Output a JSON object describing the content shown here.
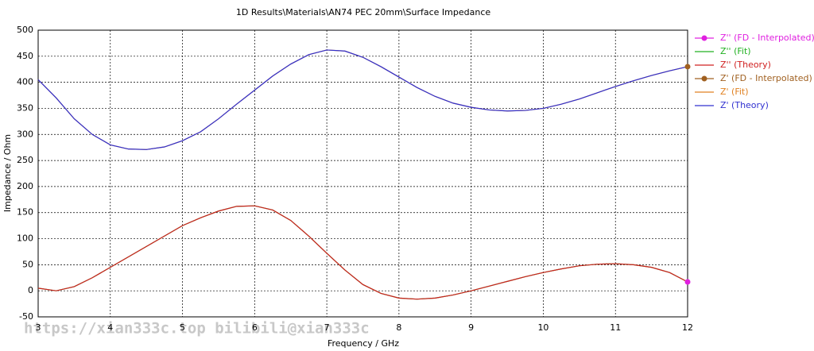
{
  "chart_data": {
    "type": "line",
    "title": "1D Results\\Materials\\AN74 PEC 20mm\\Surface Impedance",
    "x_label": "Frequency / GHz",
    "y_label": "Impedance / Ohm",
    "watermark": "https://xian333c.top bilibili@xian333c",
    "x": [
      3,
      3.25,
      3.5,
      3.75,
      4,
      4.25,
      4.5,
      4.75,
      5,
      5.25,
      5.5,
      5.75,
      6,
      6.25,
      6.5,
      6.75,
      7,
      7.25,
      7.5,
      7.75,
      8,
      8.25,
      8.5,
      8.75,
      9,
      9.25,
      9.5,
      9.75,
      10,
      10.25,
      10.5,
      10.75,
      11,
      11.25,
      11.5,
      11.75,
      12
    ],
    "xlim": [
      3,
      12
    ],
    "xticks": [
      3,
      4,
      5,
      6,
      7,
      8,
      9,
      10,
      11,
      12
    ],
    "ylim": [
      -50,
      500
    ],
    "yticks": [
      -50,
      0,
      50,
      100,
      150,
      200,
      250,
      300,
      350,
      400,
      450,
      500
    ],
    "grid": true,
    "series": [
      {
        "name": "Z'' (FD - Interpolated)",
        "color": "#e020e0",
        "marker": true,
        "values": [
          null,
          null,
          null,
          null,
          null,
          null,
          null,
          null,
          null,
          null,
          null,
          null,
          null,
          null,
          null,
          null,
          null,
          null,
          null,
          null,
          null,
          null,
          null,
          null,
          null,
          null,
          null,
          null,
          null,
          null,
          null,
          null,
          null,
          null,
          null,
          null,
          17
        ]
      },
      {
        "name": "Z'' (Fit)",
        "color": "#20b020",
        "marker": false,
        "values": [
          5,
          0,
          8,
          25,
          45,
          65,
          85,
          105,
          125,
          140,
          153,
          162,
          163,
          155,
          135,
          105,
          72,
          40,
          12,
          -5,
          -14,
          -16,
          -14,
          -8,
          0,
          9,
          18,
          27,
          35,
          42,
          48,
          51,
          52,
          50,
          45,
          35,
          17
        ]
      },
      {
        "name": "Z'' (Theory)",
        "color": "#d02020",
        "marker": false,
        "values": [
          5,
          0,
          8,
          25,
          45,
          65,
          85,
          105,
          125,
          140,
          153,
          162,
          163,
          155,
          135,
          105,
          72,
          40,
          12,
          -5,
          -14,
          -16,
          -14,
          -8,
          0,
          9,
          18,
          27,
          35,
          42,
          48,
          51,
          52,
          50,
          45,
          35,
          17
        ]
      },
      {
        "name": "Z' (FD - Interpolated)",
        "color": "#a06020",
        "marker": true,
        "values": [
          null,
          null,
          null,
          null,
          null,
          null,
          null,
          null,
          null,
          null,
          null,
          null,
          null,
          null,
          null,
          null,
          null,
          null,
          null,
          null,
          null,
          null,
          null,
          null,
          null,
          null,
          null,
          null,
          null,
          null,
          null,
          null,
          null,
          null,
          null,
          null,
          430
        ]
      },
      {
        "name": "Z' (Fit)",
        "color": "#e08020",
        "marker": false,
        "values": [
          405,
          370,
          330,
          300,
          280,
          272,
          271,
          276,
          288,
          305,
          330,
          358,
          385,
          412,
          435,
          453,
          462,
          460,
          448,
          430,
          410,
          390,
          373,
          360,
          352,
          347,
          345,
          346,
          350,
          358,
          368,
          380,
          392,
          403,
          413,
          422,
          430
        ]
      },
      {
        "name": "Z' (Theory)",
        "color": "#3030d0",
        "marker": false,
        "values": [
          405,
          370,
          330,
          300,
          280,
          272,
          271,
          276,
          288,
          305,
          330,
          358,
          385,
          412,
          435,
          453,
          462,
          460,
          448,
          430,
          410,
          390,
          373,
          360,
          352,
          347,
          345,
          346,
          350,
          358,
          368,
          380,
          392,
          403,
          413,
          422,
          430
        ]
      }
    ]
  }
}
